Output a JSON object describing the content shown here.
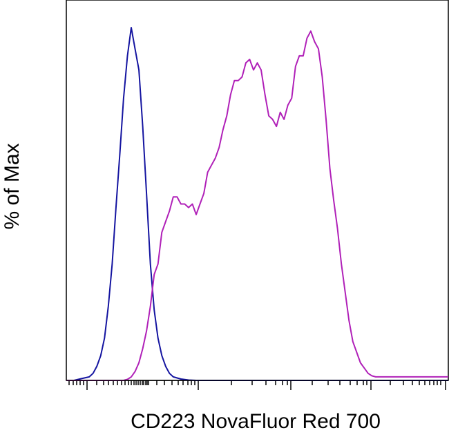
{
  "chart_data": {
    "type": "line",
    "title": "",
    "xlabel": "CD223 NovaFluor Red 700",
    "ylabel": "% of Max",
    "xscale": "log (biexponential)",
    "x_ticks_labeled": false,
    "y_ticks_labeled": false,
    "grid": false,
    "legend": "none",
    "xlim": [
      0,
      100
    ],
    "ylim": [
      0,
      100
    ],
    "series": [
      {
        "color": "#1414a0",
        "x": [
          2,
          4,
          6,
          7,
          8,
          9,
          10,
          11,
          12,
          13,
          14,
          15,
          16,
          17,
          18,
          19,
          20,
          21,
          22,
          23,
          24,
          25,
          26,
          27,
          28,
          30,
          32,
          34,
          36,
          100
        ],
        "y": [
          0,
          0.5,
          1,
          2,
          4,
          7,
          12,
          21,
          33,
          49,
          64,
          80,
          92,
          100,
          94,
          88,
          72,
          53,
          33,
          20,
          12,
          7,
          4,
          2,
          1,
          0.4,
          0.1,
          0,
          0,
          0
        ]
      },
      {
        "color": "#b020b8",
        "x": [
          0,
          15,
          16,
          17,
          18,
          19,
          20,
          21,
          22,
          23,
          24,
          25,
          26,
          27,
          28,
          29,
          30,
          31,
          32,
          33,
          34,
          35,
          36,
          37,
          38,
          39,
          40,
          41,
          42,
          43,
          44,
          45,
          46,
          47,
          48,
          49,
          50,
          51,
          52,
          53,
          54,
          55,
          56,
          57,
          58,
          59,
          60,
          61,
          62,
          63,
          64,
          65,
          66,
          67,
          68,
          69,
          70,
          71,
          72,
          73,
          74,
          75,
          76,
          77,
          78,
          79,
          80,
          81,
          82,
          83,
          84,
          85,
          86,
          87,
          88,
          89,
          90,
          91,
          92,
          93,
          94,
          95,
          96,
          97,
          98,
          99,
          100
        ],
        "y": [
          0,
          0,
          0.3,
          1,
          2.5,
          5,
          9,
          14,
          21,
          30,
          33,
          42,
          45,
          48,
          52,
          52,
          50,
          50,
          49,
          50,
          47,
          50,
          53,
          59,
          61,
          63,
          66,
          71,
          75,
          81,
          85,
          85,
          86,
          90,
          91,
          88,
          90,
          88,
          81,
          75,
          74,
          72,
          76,
          74,
          78,
          80,
          89,
          92,
          92,
          97,
          99,
          96,
          94,
          86,
          74,
          60,
          51,
          43,
          33,
          25,
          17,
          11,
          8,
          5,
          3.5,
          2,
          1.3,
          1,
          1,
          1,
          1,
          1,
          1,
          1,
          1,
          1,
          1,
          1,
          1,
          1,
          1,
          1,
          1,
          1,
          1,
          1,
          1
        ]
      }
    ]
  }
}
